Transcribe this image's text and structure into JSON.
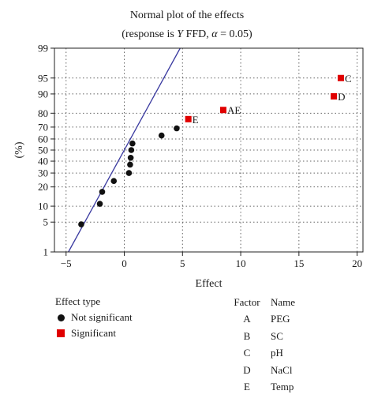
{
  "chart_data": {
    "type": "scatter",
    "title": "Normal plot of the effects",
    "subtitle_parts": [
      "(response is ",
      "Y",
      " FFD, ",
      "α",
      " = 0.05)"
    ],
    "xlabel": "Effect",
    "ylabel": "(%)",
    "xlim": [
      -6,
      20.5
    ],
    "ylim": [
      1,
      99
    ],
    "y_scale": "normal-probability",
    "x_ticks": [
      -5,
      0,
      5,
      10,
      15,
      20
    ],
    "y_ticks": [
      1,
      5,
      10,
      20,
      30,
      40,
      50,
      60,
      70,
      80,
      90,
      95,
      99
    ],
    "grid": "dotted",
    "reference_line": {
      "points": [
        [
          -4.8,
          1
        ],
        [
          4.8,
          99
        ]
      ],
      "color": "#3a3aa0"
    },
    "series": [
      {
        "name": "Not significant",
        "marker": "circle",
        "color": "#111111",
        "points": [
          {
            "x": -3.7,
            "y": 4.5
          },
          {
            "x": -2.1,
            "y": 11
          },
          {
            "x": -1.9,
            "y": 17
          },
          {
            "x": -0.9,
            "y": 24
          },
          {
            "x": 0.4,
            "y": 30
          },
          {
            "x": 0.5,
            "y": 37
          },
          {
            "x": 0.55,
            "y": 43
          },
          {
            "x": 0.6,
            "y": 50
          },
          {
            "x": 0.7,
            "y": 56
          },
          {
            "x": 3.2,
            "y": 63
          },
          {
            "x": 4.5,
            "y": 69
          }
        ]
      },
      {
        "name": "Significant",
        "marker": "square",
        "color": "#e00000",
        "points": [
          {
            "x": 5.5,
            "y": 76,
            "label": "E"
          },
          {
            "x": 8.5,
            "y": 82,
            "label": "AE"
          },
          {
            "x": 18.0,
            "y": 89,
            "label": "D"
          },
          {
            "x": 18.6,
            "y": 95,
            "label": "C"
          }
        ]
      }
    ]
  },
  "legend": {
    "title": "Effect type",
    "items": [
      {
        "label": "Not significant",
        "marker": "circle",
        "color": "#111111"
      },
      {
        "label": "Significant",
        "marker": "square",
        "color": "#e00000"
      }
    ]
  },
  "factors": {
    "header_factor": "Factor",
    "header_name": "Name",
    "rows": [
      {
        "factor": "A",
        "name": "PEG"
      },
      {
        "factor": "B",
        "name": "SC"
      },
      {
        "factor": "C",
        "name": "pH"
      },
      {
        "factor": "D",
        "name": "NaCl"
      },
      {
        "factor": "E",
        "name": "Temp"
      }
    ]
  }
}
